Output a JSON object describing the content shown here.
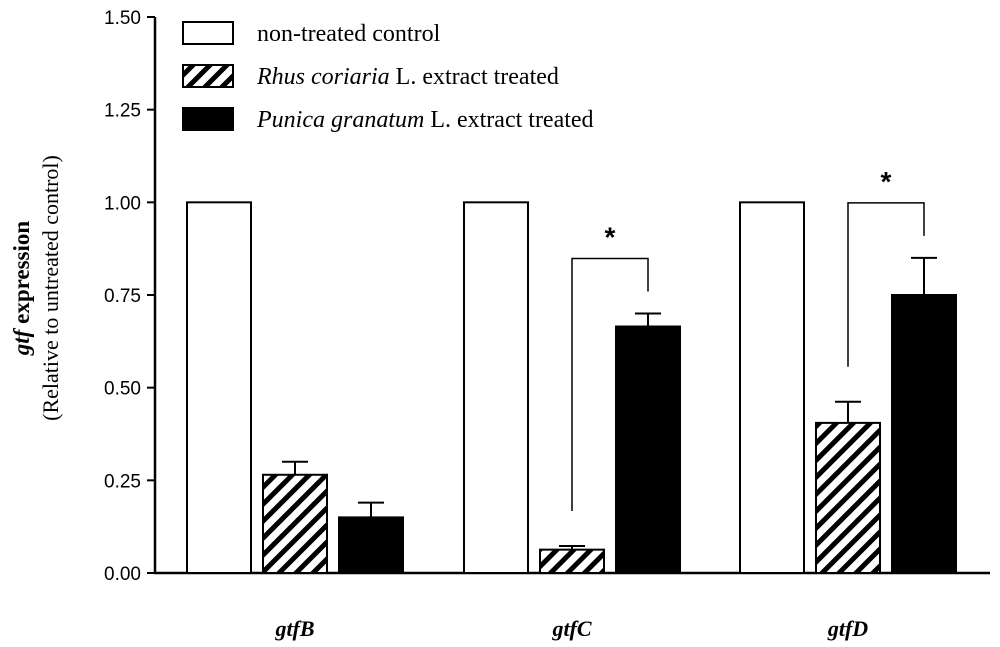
{
  "chart_data": {
    "type": "bar",
    "categories": [
      "gtfB",
      "gtfC",
      "gtfD"
    ],
    "series": [
      {
        "name": "non-treated control",
        "legend_italic": "",
        "legend_rest": "non-treated control",
        "fill": "white",
        "values": [
          1.0,
          1.0,
          1.0
        ],
        "errors": [
          0,
          0,
          0
        ]
      },
      {
        "name": "Rhus coriaria L. extract treated",
        "legend_italic": "Rhus coriaria",
        "legend_rest": " L. extract treated",
        "fill": "hatched",
        "values": [
          0.265,
          0.063,
          0.405
        ],
        "errors": [
          0.035,
          0.01,
          0.057
        ]
      },
      {
        "name": "Punica granatum L. extract treated",
        "legend_italic": "Punica granatum",
        "legend_rest": " L. extract treated",
        "fill": "black",
        "values": [
          0.15,
          0.665,
          0.75
        ],
        "errors": [
          0.04,
          0.035,
          0.1
        ]
      }
    ],
    "ylabel_main_italic": "gtf",
    "ylabel_main_rest": " expression",
    "ylabel_sub": "(Relative to untreated control)",
    "ylim": [
      0,
      1.5
    ],
    "yticks": [
      "0.00",
      "0.25",
      "0.50",
      "0.75",
      "1.00",
      "1.25",
      "1.50"
    ],
    "significance": [
      {
        "category": "gtfC",
        "label": "*",
        "from_series": 1,
        "to_series": 2
      },
      {
        "category": "gtfD",
        "label": "*",
        "from_series": 1,
        "to_series": 2
      }
    ],
    "legend_position": "top-left",
    "grid": false,
    "colors": {
      "bar_edge": "#000000",
      "black_fill": "#000000",
      "white_fill": "#ffffff"
    }
  }
}
